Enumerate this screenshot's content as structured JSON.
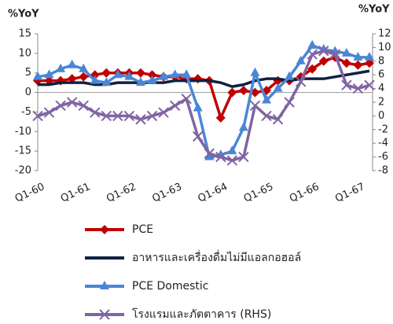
{
  "chart_data": {
    "type": "line",
    "ylabel": "%YoY",
    "y2label": "%YoY",
    "categories": [
      "Q1-60",
      null,
      null,
      null,
      "Q1-61",
      null,
      null,
      null,
      "Q1-62",
      null,
      null,
      null,
      "Q1-63",
      null,
      null,
      null,
      "Q1-64",
      null,
      null,
      null,
      "Q1-65",
      null,
      null,
      null,
      "Q1-66",
      null,
      null,
      null,
      "Q1-67",
      null
    ],
    "ylim": [
      -20,
      15
    ],
    "yticks": [
      -20,
      -15,
      -10,
      -5,
      0,
      5,
      10,
      15
    ],
    "y2lim": [
      -8,
      12
    ],
    "y2ticks": [
      -8,
      -6,
      -4,
      -2,
      0,
      2,
      4,
      6,
      8,
      10,
      12
    ],
    "series": [
      {
        "name": "PCE",
        "color": "#c00000",
        "marker": "diamond",
        "values": [
          3,
          3,
          3,
          3.5,
          4,
          4.5,
          5,
          5,
          5,
          5,
          4.5,
          4,
          4,
          3.5,
          3.5,
          3,
          -6.5,
          0,
          0.5,
          0,
          0.5,
          3,
          3,
          4,
          6,
          8,
          9,
          7.5,
          7,
          7.5
        ]
      },
      {
        "name": "อาหารและเครื่องดื่มไม่มีแอลกอฮอล์",
        "color": "#0f2142",
        "marker": "none",
        "values": [
          2,
          2,
          2.5,
          2.5,
          2.5,
          2,
          2,
          2.5,
          2.5,
          2.5,
          2.5,
          2.5,
          3,
          3,
          3,
          3,
          2.5,
          1.5,
          2,
          3,
          3.5,
          3.5,
          3,
          3.5,
          3.5,
          3.5,
          4,
          4.5,
          5,
          5.5
        ]
      },
      {
        "name": "PCE Domestic",
        "color": "#4a86d6",
        "marker": "triangle",
        "values": [
          4,
          4.5,
          6,
          7,
          6,
          3,
          2.5,
          4.5,
          4,
          2.5,
          3,
          4,
          4.5,
          4.5,
          -4,
          -16.5,
          -16,
          -15,
          -9,
          5,
          -2,
          1,
          4,
          8,
          12,
          11,
          10.5,
          10,
          9,
          9
        ]
      },
      {
        "name": "โรงแรมและภัตตาคาร (RHS)",
        "color": "#8064a2",
        "marker": "x",
        "axis": "y2",
        "values": [
          0,
          0.5,
          1.5,
          2,
          1.5,
          0.5,
          0,
          0,
          0,
          -0.5,
          0,
          0.5,
          1.5,
          2.5,
          -3,
          -5.5,
          -6,
          -6.5,
          -6,
          1.5,
          0,
          -0.5,
          2,
          5,
          9,
          9.5,
          9,
          4.5,
          4,
          4.5
        ]
      }
    ]
  }
}
